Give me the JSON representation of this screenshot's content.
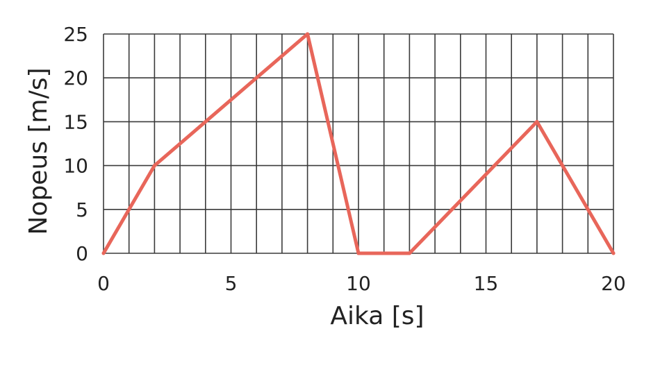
{
  "chart_data": {
    "type": "line",
    "xlabel": "Aika [s]",
    "ylabel": "Nopeus [m/s]",
    "xlim": [
      0,
      20
    ],
    "ylim": [
      0,
      25
    ],
    "x_ticks": [
      0,
      5,
      10,
      15,
      20
    ],
    "y_ticks": [
      0,
      5,
      10,
      15,
      20,
      25
    ],
    "x_tick_labels": [
      "0",
      "5",
      "10",
      "15",
      "20"
    ],
    "y_tick_labels": [
      "0",
      "5",
      "10",
      "15",
      "20",
      "25"
    ],
    "grid": true,
    "grid_x_step": 1,
    "grid_y_step": 5,
    "series": [
      {
        "x": [
          0,
          2,
          8,
          10,
          12,
          17,
          20
        ],
        "y": [
          0,
          10,
          25,
          0,
          0,
          15,
          0
        ]
      }
    ],
    "colors": {
      "line": "#e8665a",
      "grid": "#3a3a3a",
      "text": "#222222"
    }
  }
}
